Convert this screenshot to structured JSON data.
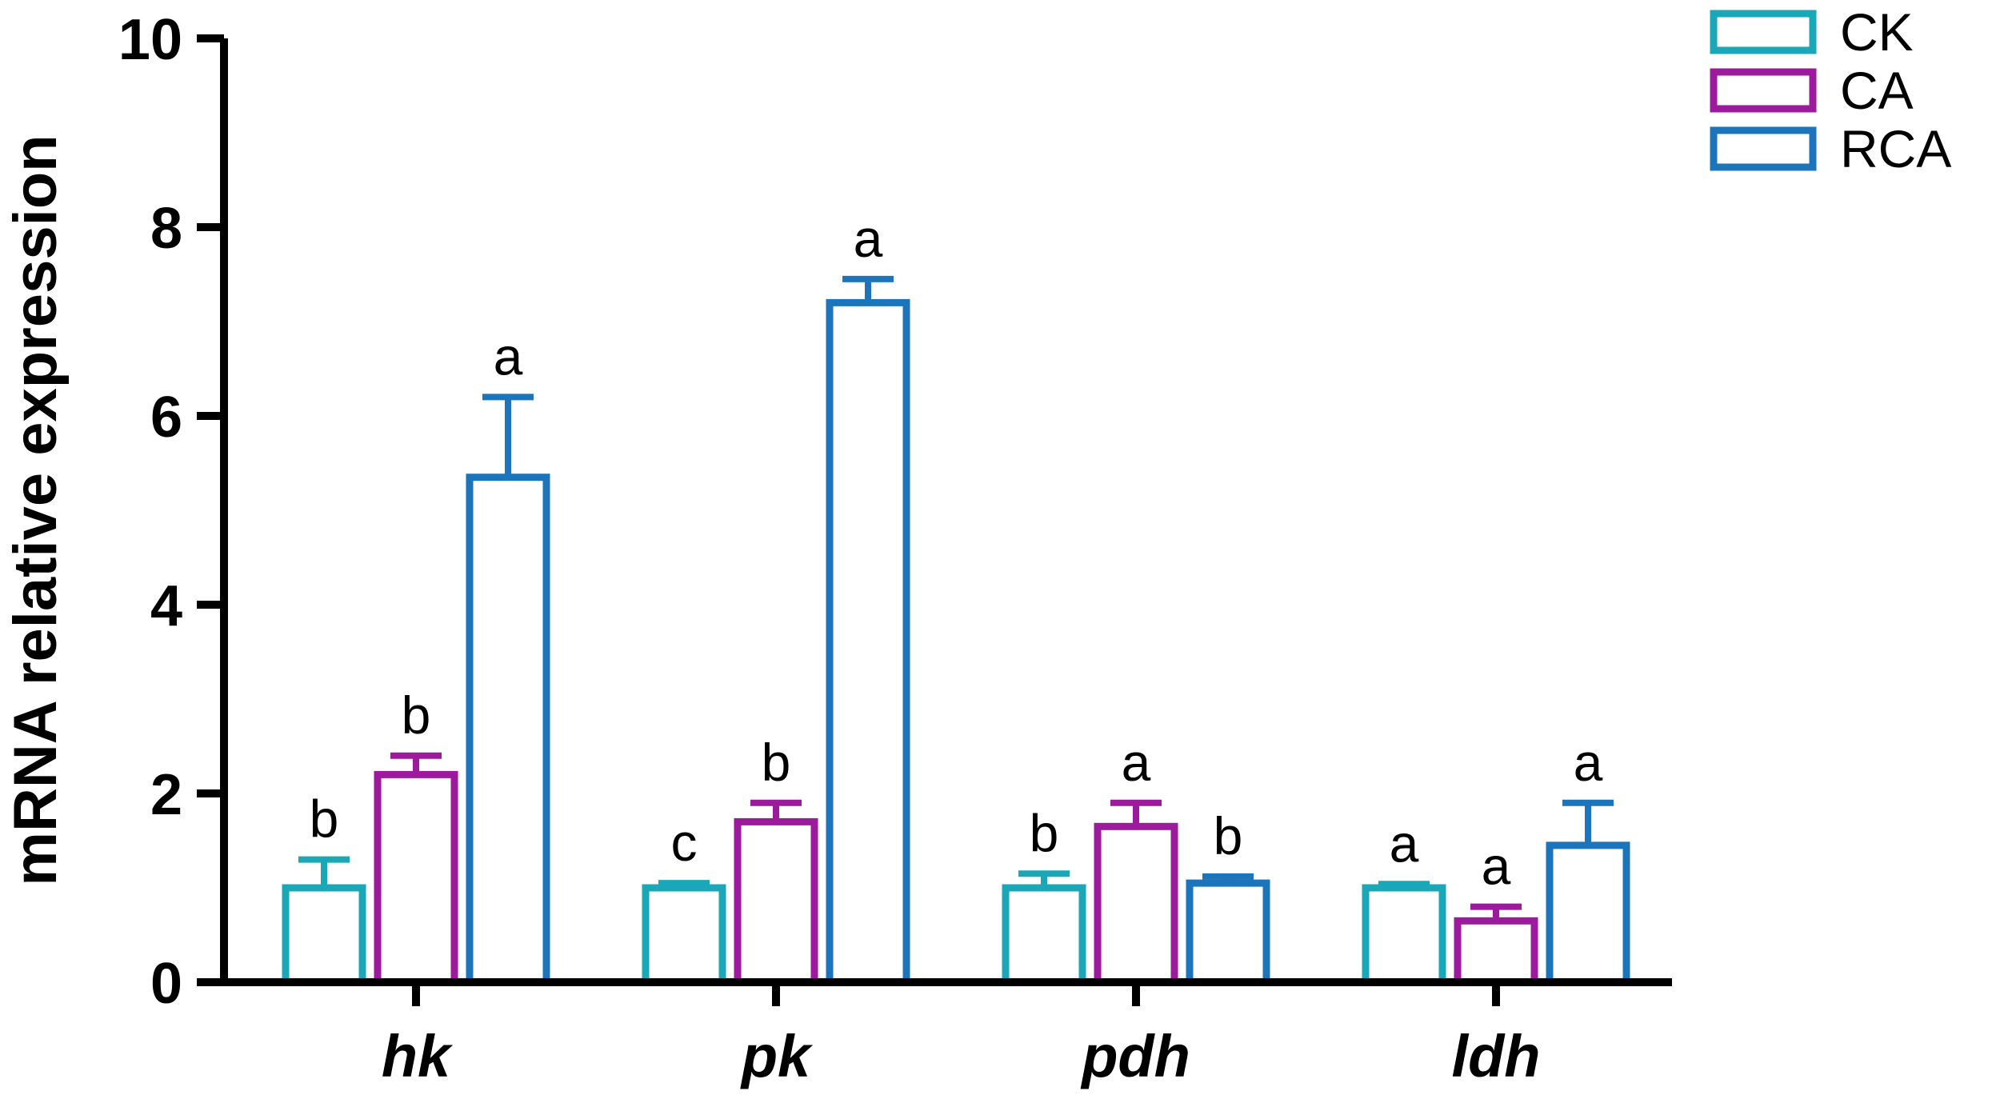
{
  "chart_data": {
    "type": "bar",
    "title": "",
    "xlabel": "",
    "ylabel": "mRNA relative expression",
    "ylim": [
      0,
      10
    ],
    "yticks": [
      0,
      2,
      4,
      6,
      8,
      10
    ],
    "grid": false,
    "legend_position": "top-right",
    "axis_color": "#000000",
    "bar_fill": "#ffffff",
    "categories": [
      "hk",
      "pk",
      "pdh",
      "ldh"
    ],
    "series": [
      {
        "name": "CK",
        "color": "#1AA7B8",
        "values": [
          1.0,
          1.0,
          1.0,
          1.0
        ],
        "errors": [
          0.3,
          0.05,
          0.15,
          0.04
        ],
        "letters": [
          "b",
          "c",
          "b",
          "a"
        ]
      },
      {
        "name": "CA",
        "color": "#9C1A9C",
        "values": [
          2.2,
          1.7,
          1.65,
          0.65
        ],
        "errors": [
          0.2,
          0.2,
          0.25,
          0.15
        ],
        "letters": [
          "b",
          "b",
          "a",
          "a"
        ]
      },
      {
        "name": "RCA",
        "color": "#1C75BB",
        "values": [
          5.35,
          7.2,
          1.05,
          1.45
        ],
        "errors": [
          0.85,
          0.25,
          0.07,
          0.45
        ],
        "letters": [
          "a",
          "a",
          "b",
          "a"
        ]
      }
    ]
  }
}
